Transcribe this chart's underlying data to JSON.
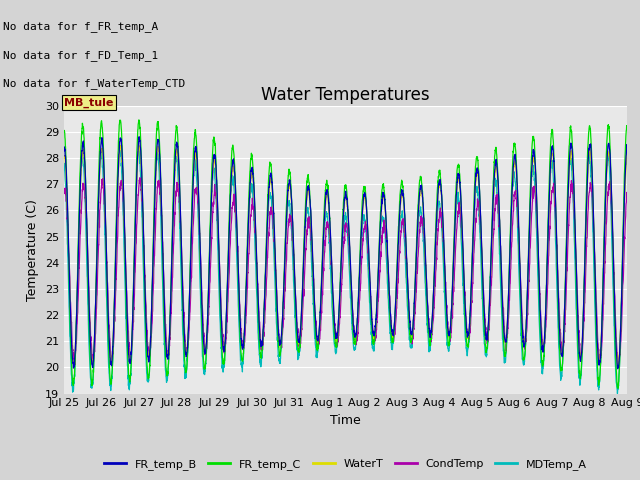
{
  "title": "Water Temperatures",
  "ylabel": "Temperature (C)",
  "xlabel": "Time",
  "ylim": [
    19.0,
    30.0
  ],
  "yticks": [
    19.0,
    20.0,
    21.0,
    22.0,
    23.0,
    24.0,
    25.0,
    26.0,
    27.0,
    28.0,
    29.0,
    30.0
  ],
  "fig_bg_color": "#d4d4d4",
  "plot_bg_color": "#e8e8e8",
  "grid_color": "#ffffff",
  "annotations": [
    "No data for f_FR_temp_A",
    "No data for f_FD_Temp_1",
    "No data for f_WaterTemp_CTD"
  ],
  "mb_tule_label": "MB_tule",
  "legend_labels": [
    "FR_temp_B",
    "FR_temp_C",
    "WaterT",
    "CondTemp",
    "MDTemp_A"
  ],
  "legend_colors": [
    "#0000bb",
    "#00dd00",
    "#dddd00",
    "#aa00aa",
    "#00bbbb"
  ],
  "x_tick_labels": [
    "Jul 25",
    "Jul 26",
    "Jul 27",
    "Jul 28",
    "Jul 29",
    "Jul 30",
    "Jul 31",
    "Aug 1",
    "Aug 2",
    "Aug 3",
    "Aug 4",
    "Aug 5",
    "Aug 6",
    "Aug 7",
    "Aug 8",
    "Aug 9"
  ],
  "title_fontsize": 12,
  "axis_label_fontsize": 9,
  "tick_fontsize": 8,
  "annotation_fontsize": 8,
  "legend_fontsize": 8
}
